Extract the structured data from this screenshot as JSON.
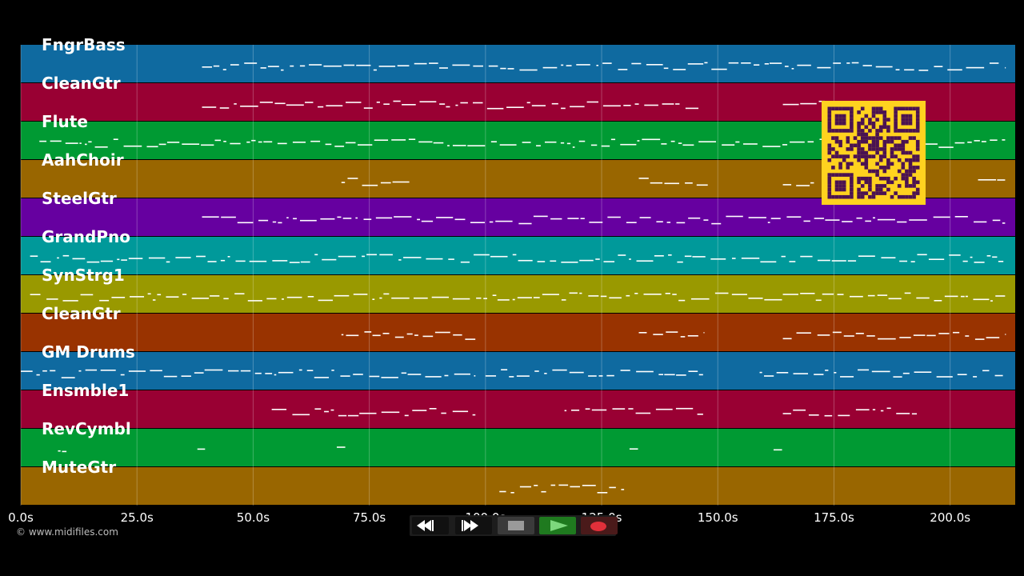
{
  "tracks": [
    {
      "name": "FngrBass",
      "color": "#0f6aa0"
    },
    {
      "name": "CleanGtr",
      "color": "#990033"
    },
    {
      "name": "Flute",
      "color": "#009a33"
    },
    {
      "name": "AahChoir",
      "color": "#996600"
    },
    {
      "name": "SteelGtr",
      "color": "#6600a0"
    },
    {
      "name": "GrandPno",
      "color": "#00999a"
    },
    {
      "name": "SynStrg1",
      "color": "#999900"
    },
    {
      "name": "CleanGtr",
      "color": "#993300"
    },
    {
      "name": "GM Drums",
      "color": "#0f6aa0"
    },
    {
      "name": "Ensmble1",
      "color": "#990033"
    },
    {
      "name": "RevCymbl",
      "color": "#009a33"
    },
    {
      "name": "MuteGtr",
      "color": "#996600"
    }
  ],
  "timeline": {
    "ticks": [
      "0.0s",
      "25.0s",
      "50.0s",
      "75.0s",
      "100.0s",
      "125.0s",
      "150.0s",
      "175.0s",
      "200.0s"
    ],
    "range_seconds": [
      0,
      214
    ]
  },
  "copyright": "© www.midifiles.com",
  "transport": {
    "rewind_icon": "rewind-icon",
    "fast_forward_icon": "fast-forward-icon",
    "stop_icon": "stop-icon",
    "play_icon": "play-icon",
    "record_icon": "record-icon"
  },
  "colors": {
    "background": "#000000",
    "note": "#ffffff",
    "qr_background": "#ffd21f",
    "qr_module": "#4a1252",
    "play_active": "#1f7a1f",
    "record": "#e0303a"
  }
}
